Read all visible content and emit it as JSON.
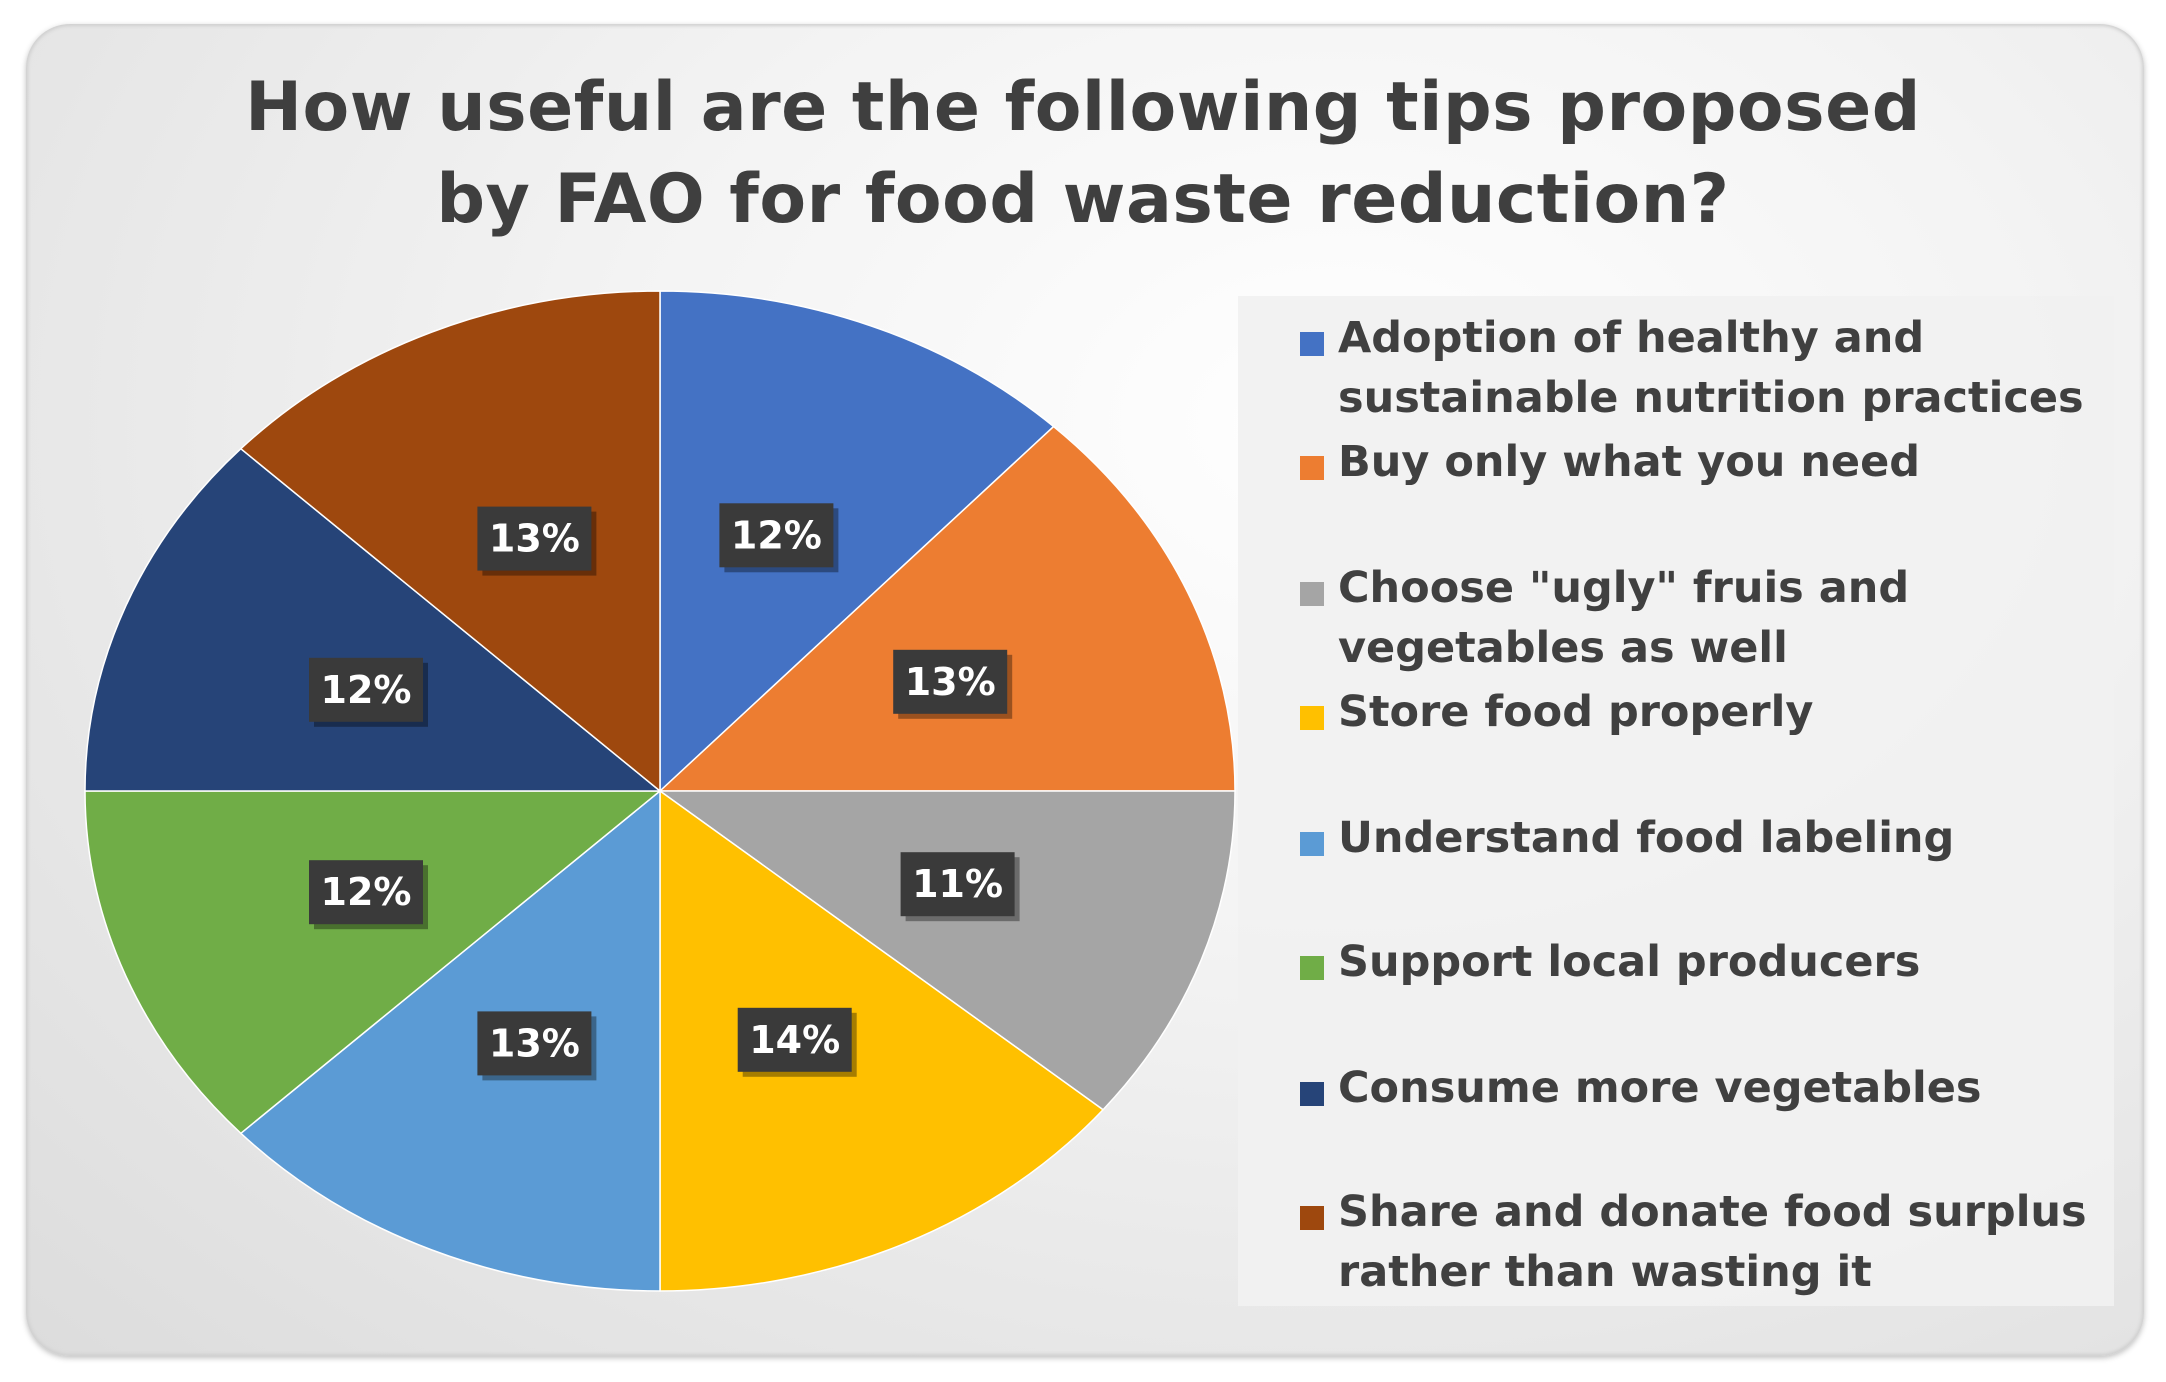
{
  "chart_data": {
    "type": "pie",
    "title": "How useful are the following tips proposed by FAO for food waste reduction?",
    "title_lines": [
      "How useful are the following tips proposed",
      "by FAO for food waste reduction?"
    ],
    "legend_position": "right",
    "slices": [
      {
        "label": "Adoption of healthy and sustainable nutrition practices",
        "label_lines": [
          "Adoption of healthy and",
          "sustainable nutrition practices"
        ],
        "value": 12,
        "data_label": "12%",
        "color": "#4472C4"
      },
      {
        "label": "Buy only what you need",
        "label_lines": [
          "Buy only what you need"
        ],
        "value": 13,
        "data_label": "13%",
        "color": "#ED7D31"
      },
      {
        "label": "Choose \"ugly\" fruis and vegetables as well",
        "label_lines": [
          "Choose \"ugly\" fruis and",
          "vegetables as well"
        ],
        "value": 11,
        "data_label": "11%",
        "color": "#A5A5A5"
      },
      {
        "label": "Store food properly",
        "label_lines": [
          "Store food properly"
        ],
        "value": 14,
        "data_label": "14%",
        "color": "#FFC000"
      },
      {
        "label": "Understand food labeling",
        "label_lines": [
          "Understand food labeling"
        ],
        "value": 13,
        "data_label": "13%",
        "color": "#5B9BD5"
      },
      {
        "label": "Support local producers",
        "label_lines": [
          "Support local producers"
        ],
        "value": 12,
        "data_label": "12%",
        "color": "#70AD47"
      },
      {
        "label": "Consume more vegetables",
        "label_lines": [
          "Consume more vegetables"
        ],
        "value": 12,
        "data_label": "12%",
        "color": "#264478"
      },
      {
        "label": "Share and donate food surplus rather than wasting it",
        "label_lines": [
          "Share and donate food surplus",
          "rather than wasting it"
        ],
        "value": 13,
        "data_label": "13%",
        "color": "#9E480E"
      }
    ]
  }
}
